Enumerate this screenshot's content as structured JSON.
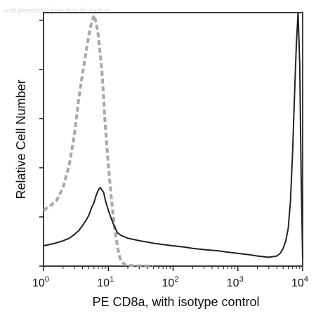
{
  "watermark": "with permission from Sino Biological",
  "chart_data": {
    "type": "line",
    "title": "",
    "xlabel": "PE CD8a, with isotype control",
    "ylabel": "Relative Cell Number",
    "x_scale": "log",
    "xlim": [
      1,
      10000
    ],
    "ylim": [
      0,
      100
    ],
    "grid": false,
    "x_ticks": [
      {
        "value": 1,
        "base": "10",
        "exp": "0"
      },
      {
        "value": 10,
        "base": "10",
        "exp": "1"
      },
      {
        "value": 100,
        "base": "10",
        "exp": "2"
      },
      {
        "value": 1000,
        "base": "10",
        "exp": "3"
      },
      {
        "value": 10000,
        "base": "10",
        "exp": "4"
      }
    ],
    "y_tick_count": 6,
    "series": [
      {
        "name": "",
        "color": "#a8a8a8",
        "style": "dashed",
        "x": [
          1.0,
          1.3,
          1.6,
          2.0,
          2.5,
          3.0,
          3.5,
          4.0,
          4.5,
          5.0,
          5.5,
          6.0,
          6.5,
          7.0,
          7.5,
          8.0,
          8.5,
          9.0,
          10.0,
          11.0,
          12.0,
          13.0,
          14.0,
          15.0,
          16.0,
          17.0,
          18.0,
          20.0,
          23.0,
          30.0,
          50.0
        ],
        "y": [
          22,
          24,
          26,
          31,
          40,
          52,
          66,
          76,
          84,
          91,
          96,
          99,
          96,
          91,
          84,
          76,
          66,
          55,
          40,
          28,
          19,
          12,
          7,
          3.5,
          1.8,
          1.2,
          0.6,
          0.3,
          0.2,
          0.1,
          0
        ]
      },
      {
        "name": "",
        "color": "#222222",
        "style": "solid",
        "x": [
          1.0,
          1.5,
          2.0,
          2.5,
          3.0,
          3.5,
          4.0,
          4.5,
          5.0,
          5.5,
          6.0,
          6.5,
          7.0,
          7.5,
          8.0,
          8.5,
          9.0,
          10.0,
          11.0,
          12.0,
          13.0,
          14.0,
          16.0,
          18.0,
          20.0,
          25.0,
          30.0,
          40.0,
          50.0,
          70.0,
          100.0,
          150.0,
          200.0,
          300.0,
          500.0,
          700.0,
          1000.0,
          1500.0,
          2000.0,
          3000.0,
          4000.0,
          4500.0,
          5000.0,
          5500.0,
          6000.0,
          6500.0,
          7000.0,
          7500.0,
          8000.0,
          8500.0,
          9000.0,
          9500.0,
          10000.0
        ],
        "y": [
          8,
          9,
          10,
          11,
          12.5,
          14,
          16,
          18,
          20,
          23,
          25,
          28,
          30,
          31,
          30,
          29,
          26,
          22,
          19,
          16.5,
          14.5,
          13,
          12,
          11.5,
          11,
          10.5,
          10,
          9.5,
          9,
          8.5,
          8,
          7.5,
          7,
          6.5,
          6,
          5.5,
          5,
          4.5,
          4,
          3.5,
          4,
          5,
          7,
          10,
          15,
          26,
          45,
          68,
          88,
          100,
          80,
          35,
          3
        ]
      }
    ]
  }
}
